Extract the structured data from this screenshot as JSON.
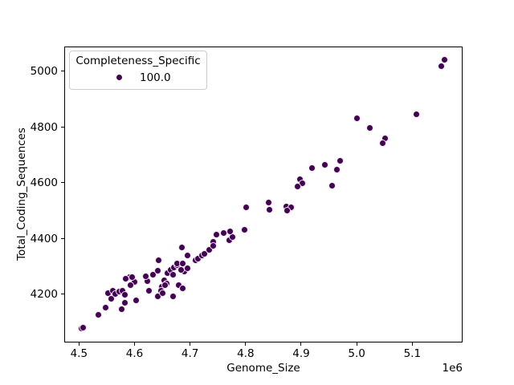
{
  "figure": {
    "background": "#ffffff",
    "accent_color": "#440154"
  },
  "chart_data": {
    "type": "scatter",
    "title": "",
    "xlabel": "Genome_Size",
    "ylabel": "Total_Coding_Sequences",
    "x_offset_label": "1e6",
    "xlim": [
      4473500,
      5190600
    ],
    "ylim": [
      4025,
      5090
    ],
    "grid": false,
    "xticks": {
      "values": [
        4500000,
        4600000,
        4700000,
        4800000,
        4900000,
        5000000,
        5100000
      ],
      "labels": [
        "4.5",
        "4.6",
        "4.7",
        "4.8",
        "4.9",
        "5.0",
        "5.1"
      ]
    },
    "yticks": {
      "values": [
        4200,
        4400,
        4600,
        4800,
        5000
      ],
      "labels": [
        "4200",
        "4400",
        "4600",
        "4800",
        "5000"
      ]
    },
    "legend": {
      "title": "Completeness_Specific",
      "position": "upper left",
      "entries": [
        {
          "label": "100.0",
          "color": "#440154"
        }
      ]
    },
    "series": [
      {
        "name": "100.0",
        "color": "#440154",
        "marker_edge": "#ffffff",
        "points": [
          [
            4504600,
            4076
          ],
          [
            4507500,
            4080
          ],
          [
            4534700,
            4124
          ],
          [
            4548000,
            4152
          ],
          [
            4576200,
            4145
          ],
          [
            4582000,
            4167
          ],
          [
            4602200,
            4177
          ],
          [
            4551600,
            4203
          ],
          [
            4560300,
            4212
          ],
          [
            4565100,
            4200
          ],
          [
            4572300,
            4208
          ],
          [
            4578600,
            4210
          ],
          [
            4582000,
            4196
          ],
          [
            4557800,
            4184
          ],
          [
            4591700,
            4261
          ],
          [
            4599800,
            4244
          ],
          [
            4622900,
            4246
          ],
          [
            4620600,
            4263
          ],
          [
            4632600,
            4270
          ],
          [
            4626400,
            4212
          ],
          [
            4642300,
            4284
          ],
          [
            4649500,
            4227
          ],
          [
            4641300,
            4190
          ],
          [
            4659000,
            4275
          ],
          [
            4665400,
            4286
          ],
          [
            4668700,
            4270
          ],
          [
            4671200,
            4294
          ],
          [
            4676000,
            4304
          ],
          [
            4652800,
            4248
          ],
          [
            4657600,
            4238
          ],
          [
            4654300,
            4232
          ],
          [
            4647000,
            4212
          ],
          [
            4651000,
            4203
          ],
          [
            4679800,
            4232
          ],
          [
            4686500,
            4219
          ],
          [
            4689400,
            4280
          ],
          [
            4668700,
            4190
          ],
          [
            4584400,
            4254
          ],
          [
            4595400,
            4261
          ],
          [
            4592500,
            4232
          ],
          [
            4643100,
            4321
          ],
          [
            4685600,
            4366
          ],
          [
            4695200,
            4337
          ],
          [
            4676000,
            4309
          ],
          [
            4687100,
            4310
          ],
          [
            4683200,
            4287
          ],
          [
            4695200,
            4291
          ],
          [
            4709600,
            4320
          ],
          [
            4714600,
            4326
          ],
          [
            4720800,
            4339
          ],
          [
            4725500,
            4345
          ],
          [
            4733800,
            4357
          ],
          [
            4742000,
            4387
          ],
          [
            4741000,
            4374
          ],
          [
            4746800,
            4414
          ],
          [
            4761200,
            4419
          ],
          [
            4770900,
            4393
          ],
          [
            4775700,
            4405
          ],
          [
            4772400,
            4424
          ],
          [
            4797800,
            4429
          ],
          [
            4800300,
            4512
          ],
          [
            4841200,
            4529
          ],
          [
            4843200,
            4503
          ],
          [
            4873600,
            4515
          ],
          [
            4882300,
            4512
          ],
          [
            4874500,
            4501
          ],
          [
            4919300,
            4653
          ],
          [
            4942400,
            4664
          ],
          [
            4969900,
            4678
          ],
          [
            4964100,
            4647
          ],
          [
            4897600,
            4611
          ],
          [
            4901500,
            4597
          ],
          [
            4892800,
            4587
          ],
          [
            4955400,
            4589
          ],
          [
            4999800,
            4830
          ],
          [
            5022900,
            4796
          ],
          [
            5050800,
            4760
          ],
          [
            5046100,
            4741
          ],
          [
            5107200,
            4846
          ],
          [
            5157800,
            5042
          ],
          [
            5152000,
            5019
          ]
        ]
      }
    ]
  }
}
